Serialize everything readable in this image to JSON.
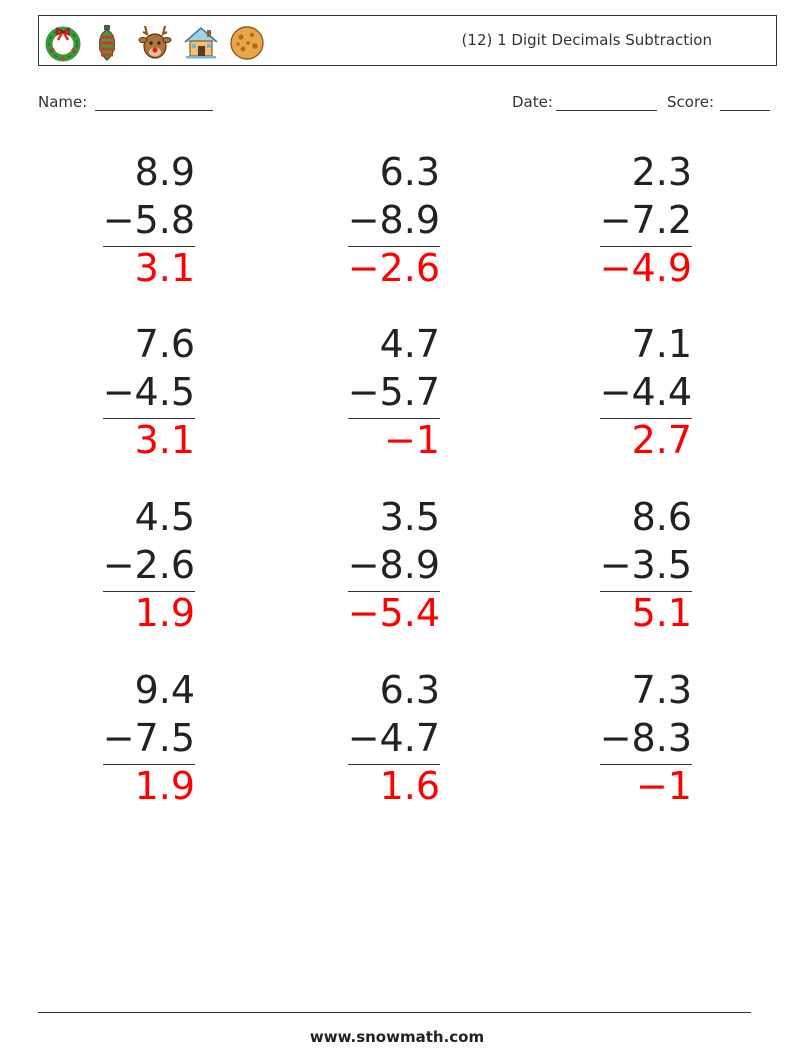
{
  "header": {
    "title": "(12) 1 Digit Decimals Subtraction",
    "icons": [
      "wreath-icon",
      "ornament-icon",
      "reindeer-icon",
      "house-icon",
      "cookie-icon"
    ]
  },
  "fields": {
    "name_label": "Name:",
    "date_label": "Date:",
    "score_label": "Score:"
  },
  "colors": {
    "answer": "#ff0000",
    "text": "#222222"
  },
  "problems": [
    {
      "top": "8.9",
      "bottom": "−5.8",
      "answer": "3.1"
    },
    {
      "top": "6.3",
      "bottom": "−8.9",
      "answer": "−2.6"
    },
    {
      "top": "2.3",
      "bottom": "−7.2",
      "answer": "−4.9"
    },
    {
      "top": "7.6",
      "bottom": "−4.5",
      "answer": "3.1"
    },
    {
      "top": "4.7",
      "bottom": "−5.7",
      "answer": "−1"
    },
    {
      "top": "7.1",
      "bottom": "−4.4",
      "answer": "2.7"
    },
    {
      "top": "4.5",
      "bottom": "−2.6",
      "answer": "1.9"
    },
    {
      "top": "3.5",
      "bottom": "−8.9",
      "answer": "−5.4"
    },
    {
      "top": "8.6",
      "bottom": "−3.5",
      "answer": "5.1"
    },
    {
      "top": "9.4",
      "bottom": "−7.5",
      "answer": "1.9"
    },
    {
      "top": "6.3",
      "bottom": "−4.7",
      "answer": "1.6"
    },
    {
      "top": "7.3",
      "bottom": "−8.3",
      "answer": "−1"
    }
  ],
  "footer": {
    "site": "www.snowmath.com"
  }
}
